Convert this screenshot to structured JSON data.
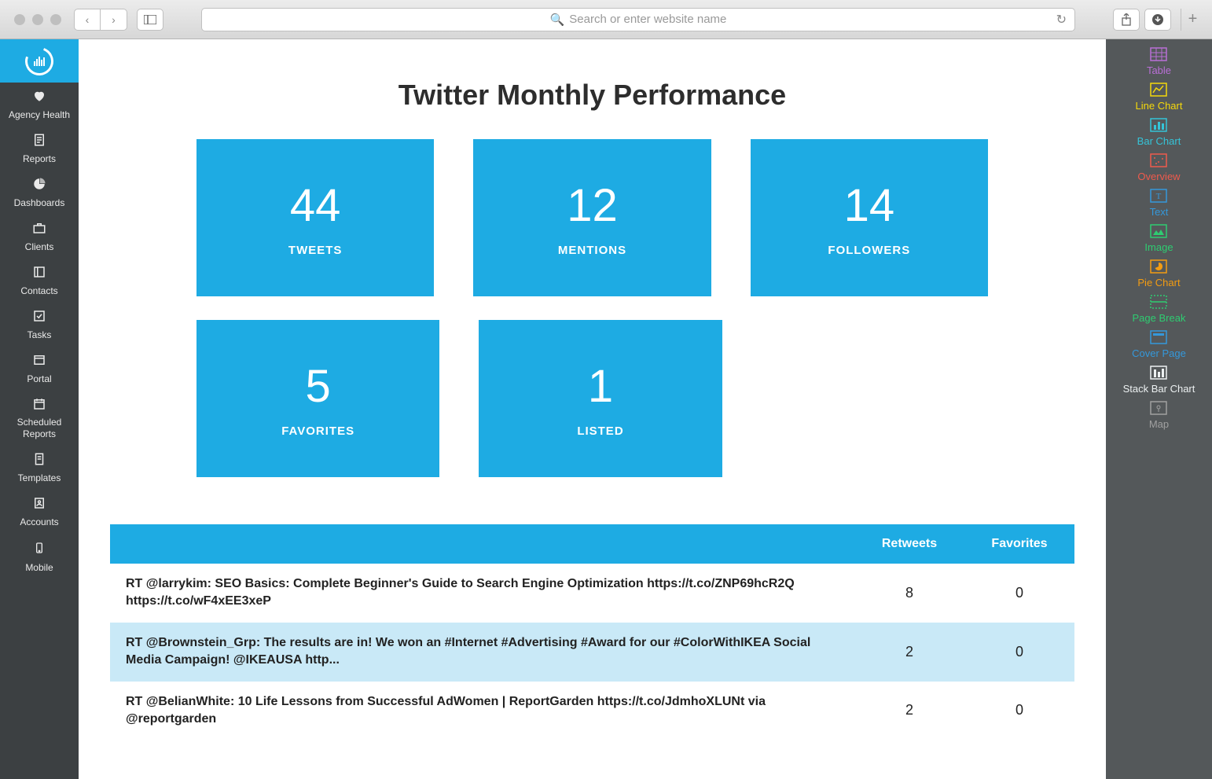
{
  "browser": {
    "placeholder": "Search or enter website name"
  },
  "sidebar": {
    "items": [
      {
        "icon": "heart",
        "label": "Agency Health"
      },
      {
        "icon": "doc",
        "label": "Reports"
      },
      {
        "icon": "pie",
        "label": "Dashboards"
      },
      {
        "icon": "briefcase",
        "label": "Clients"
      },
      {
        "icon": "contacts",
        "label": "Contacts"
      },
      {
        "icon": "check",
        "label": "Tasks"
      },
      {
        "icon": "portal",
        "label": "Portal"
      },
      {
        "icon": "calendar",
        "label": "Scheduled Reports"
      },
      {
        "icon": "template",
        "label": "Templates"
      },
      {
        "icon": "user",
        "label": "Accounts"
      },
      {
        "icon": "mobile",
        "label": "Mobile"
      }
    ]
  },
  "page": {
    "title": "Twitter Monthly Performance"
  },
  "stats": [
    {
      "value": "44",
      "label": "TWEETS"
    },
    {
      "value": "12",
      "label": "MENTIONS"
    },
    {
      "value": "14",
      "label": "FOLLOWERS"
    },
    {
      "value": "5",
      "label": "FAVORITES"
    },
    {
      "value": "1",
      "label": "LISTED"
    }
  ],
  "table": {
    "headers": {
      "tweet": "",
      "retweets": "Retweets",
      "favorites": "Favorites"
    },
    "rows": [
      {
        "text": "RT @larrykim: SEO Basics: Complete Beginner's Guide to Search Engine Optimization https://t.co/ZNP69hcR2Q https://t.co/wF4xEE3xeP",
        "retweets": "8",
        "favorites": "0"
      },
      {
        "text": "RT @Brownstein_Grp: The results are in! We won an #Internet #Advertising #Award for our #ColorWithIKEA Social Media Campaign! @IKEAUSA http...",
        "retweets": "2",
        "favorites": "0"
      },
      {
        "text": "RT @BelianWhite: 10 Life Lessons from Successful AdWomen | ReportGarden https://t.co/JdmhoXLUNt via @reportgarden",
        "retweets": "2",
        "favorites": "0"
      }
    ]
  },
  "widgets": [
    {
      "label": "Table",
      "color": "#b96fd6"
    },
    {
      "label": "Line Chart",
      "color": "#f5d90a"
    },
    {
      "label": "Bar Chart",
      "color": "#35c4d8"
    },
    {
      "label": "Overview",
      "color": "#ef5a4c"
    },
    {
      "label": "Text",
      "color": "#3498db"
    },
    {
      "label": "Image",
      "color": "#2ecc71"
    },
    {
      "label": "Pie Chart",
      "color": "#f39c12"
    },
    {
      "label": "Page Break",
      "color": "#2ecc71"
    },
    {
      "label": "Cover Page",
      "color": "#3498db"
    },
    {
      "label": "Stack Bar Chart",
      "color": "#ecf0f1"
    },
    {
      "label": "Map",
      "color": "#a0a0a0"
    }
  ],
  "colors": {
    "card_bg": "#1eabe3",
    "sidebar_left": "#3c4042",
    "sidebar_right": "#54585a",
    "row_alt": "#c9e9f7"
  }
}
